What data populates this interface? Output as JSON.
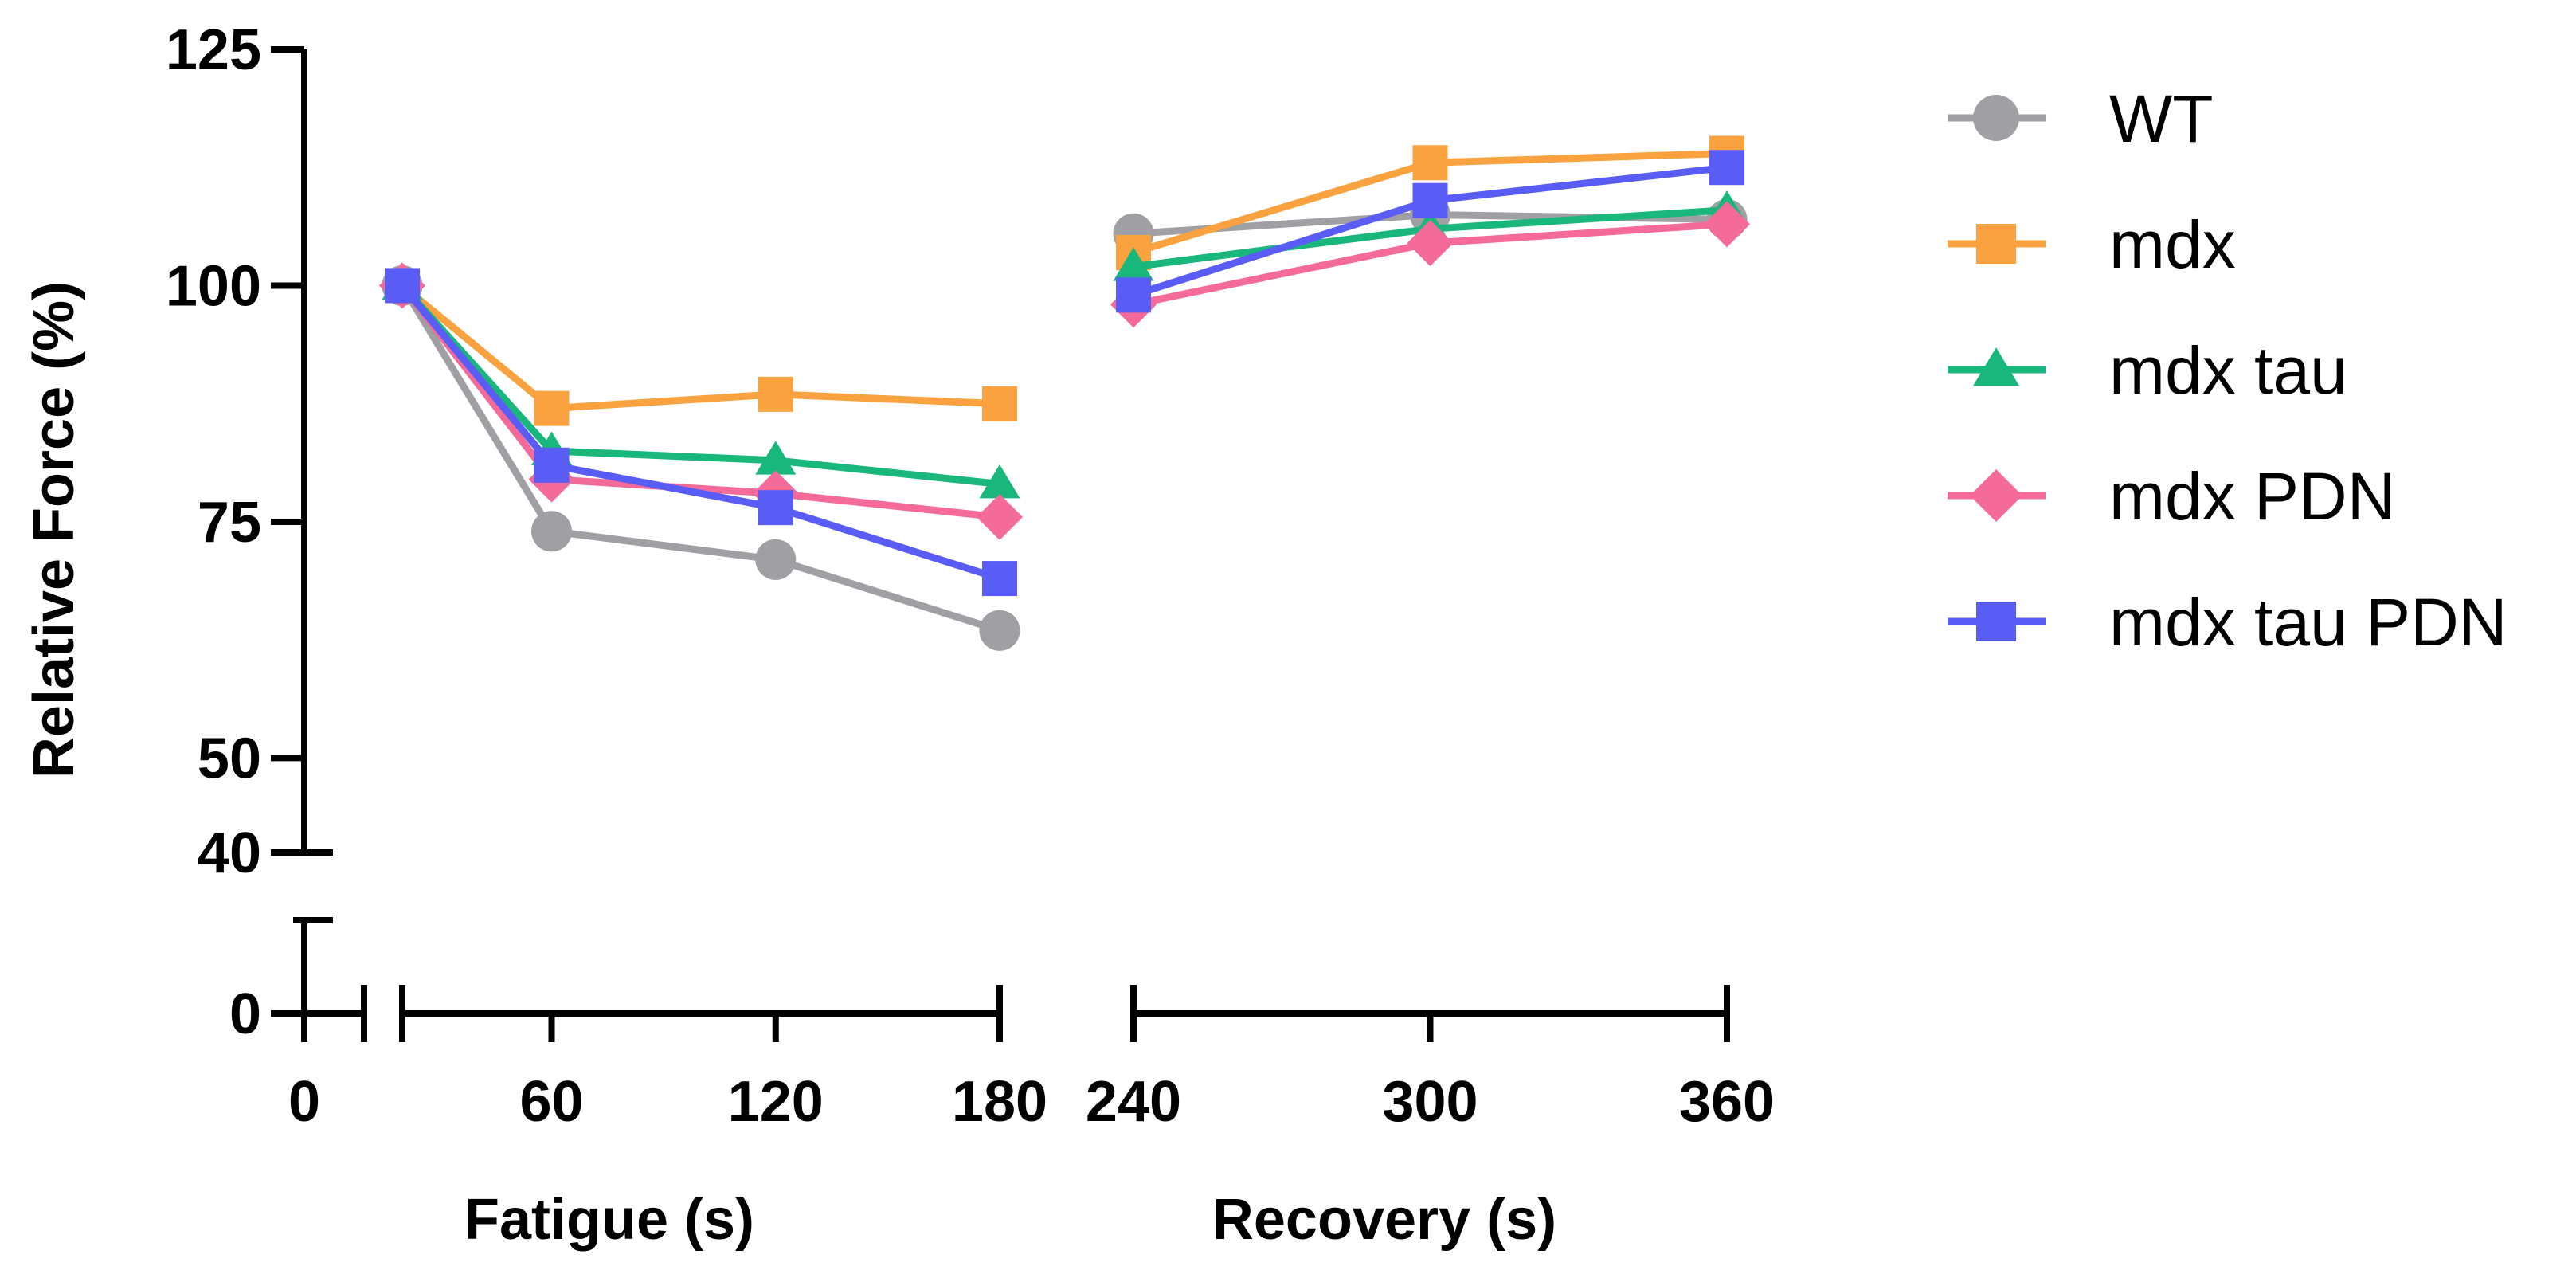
{
  "chart_data": {
    "type": "line",
    "ylabel": "Relative Force (%)",
    "ylim_upper": [
      40,
      125
    ],
    "ylim_lower": [
      0,
      40
    ],
    "yticks_upper": [
      "125",
      "100",
      "75",
      "50"
    ],
    "yticks_lower": [
      "40",
      "0"
    ],
    "panels": [
      {
        "name": "fatigue",
        "xlabel": "Fatigue (s)",
        "xlim": [
          20,
          180
        ],
        "xticks": [
          "60",
          "120",
          "180"
        ]
      },
      {
        "name": "recovery",
        "xlabel": "Recovery (s)",
        "xlim": [
          240,
          360
        ],
        "xticks": [
          "240",
          "300",
          "360"
        ]
      }
    ],
    "origin_tick": "0",
    "x_fatigue": [
      20,
      60,
      120,
      180
    ],
    "x_recovery": [
      240,
      300,
      360
    ],
    "series": [
      {
        "name": "WT",
        "marker": "circle",
        "color": "#A0A0A4",
        "fatigue": [
          100,
          74,
          71,
          63.5
        ],
        "recovery": [
          105.5,
          107.5,
          107
        ]
      },
      {
        "name": "mdx",
        "marker": "square",
        "color": "#F9A23F",
        "fatigue": [
          100,
          87,
          88.5,
          87.5
        ],
        "recovery": [
          103.5,
          113,
          114
        ]
      },
      {
        "name": "mdx tau",
        "marker": "triangle",
        "color": "#19B77B",
        "fatigue": [
          100,
          82.5,
          81.5,
          79
        ],
        "recovery": [
          102,
          106,
          108
        ]
      },
      {
        "name": "mdx PDN",
        "marker": "diamond",
        "color": "#F46A98",
        "fatigue": [
          100,
          79.5,
          78,
          75.5
        ],
        "recovery": [
          98,
          104.5,
          106.5
        ]
      },
      {
        "name": "mdx tau PDN",
        "marker": "square",
        "color": "#5A5CF6",
        "fatigue": [
          100,
          81,
          76.5,
          69
        ],
        "recovery": [
          99,
          109,
          112.5
        ]
      }
    ]
  }
}
